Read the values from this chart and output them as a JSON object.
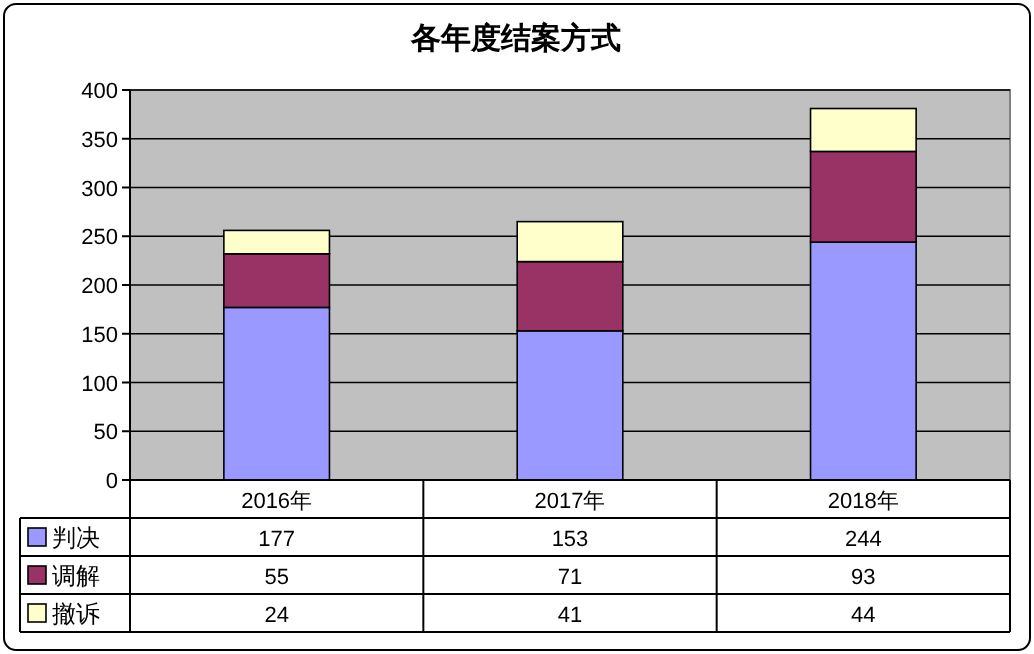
{
  "chart_data": {
    "type": "bar",
    "title": "各年度结案方式",
    "categories": [
      "2016年",
      "2017年",
      "2018年"
    ],
    "series": [
      {
        "name": "判决",
        "color": "#9999ff",
        "values": [
          177,
          153,
          244
        ]
      },
      {
        "name": "调解",
        "color": "#993366",
        "values": [
          55,
          71,
          93
        ]
      },
      {
        "name": "撤诉",
        "color": "#ffffcc",
        "values": [
          24,
          41,
          44
        ]
      }
    ],
    "stacked": true,
    "ylim": [
      0,
      400
    ],
    "yticks": [
      0,
      50,
      100,
      150,
      200,
      250,
      300,
      350,
      400
    ],
    "grid": "y",
    "legend": "bottom left",
    "data_labels": true
  }
}
